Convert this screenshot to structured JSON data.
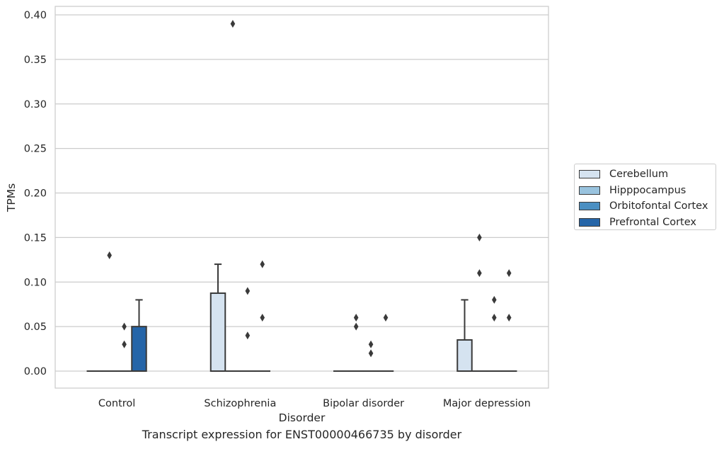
{
  "chart_data": {
    "type": "box",
    "categories": [
      "Control",
      "Schizophrenia",
      "Bipolar disorder",
      "Major depression"
    ],
    "hue_order": [
      "Cerebellum",
      "Hipppocampus",
      "Orbitofontal Cortex",
      "Prefrontal Cortex"
    ],
    "colors": {
      "Cerebellum": "#d5e3f0",
      "Hipppocampus": "#99c3de",
      "Orbitofontal Cortex": "#4a8fc2",
      "Prefrontal Cortex": "#2565a8"
    },
    "xlabel": "Disorder",
    "ylabel": "TPMs",
    "caption": "Transcript expression for ENST00000466735 by disorder",
    "ylim": [
      -0.019,
      0.409
    ],
    "yticks": [
      "0.00",
      "0.05",
      "0.10",
      "0.15",
      "0.20",
      "0.25",
      "0.30",
      "0.35",
      "0.40"
    ],
    "grid": true,
    "legend_position": "right",
    "boxes": [
      {
        "category": "Control",
        "tissue": "Cerebellum",
        "q1": 0,
        "median": 0,
        "q3": 0,
        "whisker_low": 0,
        "whisker_high": 0,
        "outliers": []
      },
      {
        "category": "Control",
        "tissue": "Hipppocampus",
        "q1": 0,
        "median": 0,
        "q3": 0,
        "whisker_low": 0,
        "whisker_high": 0,
        "outliers": [
          0.13
        ]
      },
      {
        "category": "Control",
        "tissue": "Orbitofontal Cortex",
        "q1": 0,
        "median": 0,
        "q3": 0,
        "whisker_low": 0,
        "whisker_high": 0,
        "outliers": [
          0.05,
          0.03
        ]
      },
      {
        "category": "Control",
        "tissue": "Prefrontal Cortex",
        "q1": 0,
        "median": 0,
        "q3": 0.05,
        "whisker_low": 0,
        "whisker_high": 0.08,
        "outliers": []
      },
      {
        "category": "Schizophrenia",
        "tissue": "Cerebellum",
        "q1": 0,
        "median": 0,
        "q3": 0.0875,
        "whisker_low": 0,
        "whisker_high": 0.12,
        "outliers": []
      },
      {
        "category": "Schizophrenia",
        "tissue": "Hipppocampus",
        "q1": 0,
        "median": 0,
        "q3": 0,
        "whisker_low": 0,
        "whisker_high": 0,
        "outliers": [
          0.39
        ]
      },
      {
        "category": "Schizophrenia",
        "tissue": "Orbitofontal Cortex",
        "q1": 0,
        "median": 0,
        "q3": 0,
        "whisker_low": 0,
        "whisker_high": 0,
        "outliers": [
          0.09,
          0.04
        ]
      },
      {
        "category": "Schizophrenia",
        "tissue": "Prefrontal Cortex",
        "q1": 0,
        "median": 0,
        "q3": 0,
        "whisker_low": 0,
        "whisker_high": 0,
        "outliers": [
          0.12,
          0.06
        ]
      },
      {
        "category": "Bipolar disorder",
        "tissue": "Cerebellum",
        "q1": 0,
        "median": 0,
        "q3": 0,
        "whisker_low": 0,
        "whisker_high": 0,
        "outliers": []
      },
      {
        "category": "Bipolar disorder",
        "tissue": "Hipppocampus",
        "q1": 0,
        "median": 0,
        "q3": 0,
        "whisker_low": 0,
        "whisker_high": 0,
        "outliers": [
          0.06,
          0.05
        ]
      },
      {
        "category": "Bipolar disorder",
        "tissue": "Orbitofontal Cortex",
        "q1": 0,
        "median": 0,
        "q3": 0,
        "whisker_low": 0,
        "whisker_high": 0,
        "outliers": [
          0.03,
          0.02
        ]
      },
      {
        "category": "Bipolar disorder",
        "tissue": "Prefrontal Cortex",
        "q1": 0,
        "median": 0,
        "q3": 0,
        "whisker_low": 0,
        "whisker_high": 0,
        "outliers": [
          0.06
        ]
      },
      {
        "category": "Major depression",
        "tissue": "Cerebellum",
        "q1": 0,
        "median": 0,
        "q3": 0.035,
        "whisker_low": 0,
        "whisker_high": 0.08,
        "outliers": []
      },
      {
        "category": "Major depression",
        "tissue": "Hipppocampus",
        "q1": 0,
        "median": 0,
        "q3": 0,
        "whisker_low": 0,
        "whisker_high": 0,
        "outliers": [
          0.15,
          0.11
        ]
      },
      {
        "category": "Major depression",
        "tissue": "Orbitofontal Cortex",
        "q1": 0,
        "median": 0,
        "q3": 0,
        "whisker_low": 0,
        "whisker_high": 0,
        "outliers": [
          0.08,
          0.06
        ]
      },
      {
        "category": "Major depression",
        "tissue": "Prefrontal Cortex",
        "q1": 0,
        "median": 0,
        "q3": 0,
        "whisker_low": 0,
        "whisker_high": 0,
        "outliers": [
          0.11,
          0.06
        ]
      }
    ]
  }
}
